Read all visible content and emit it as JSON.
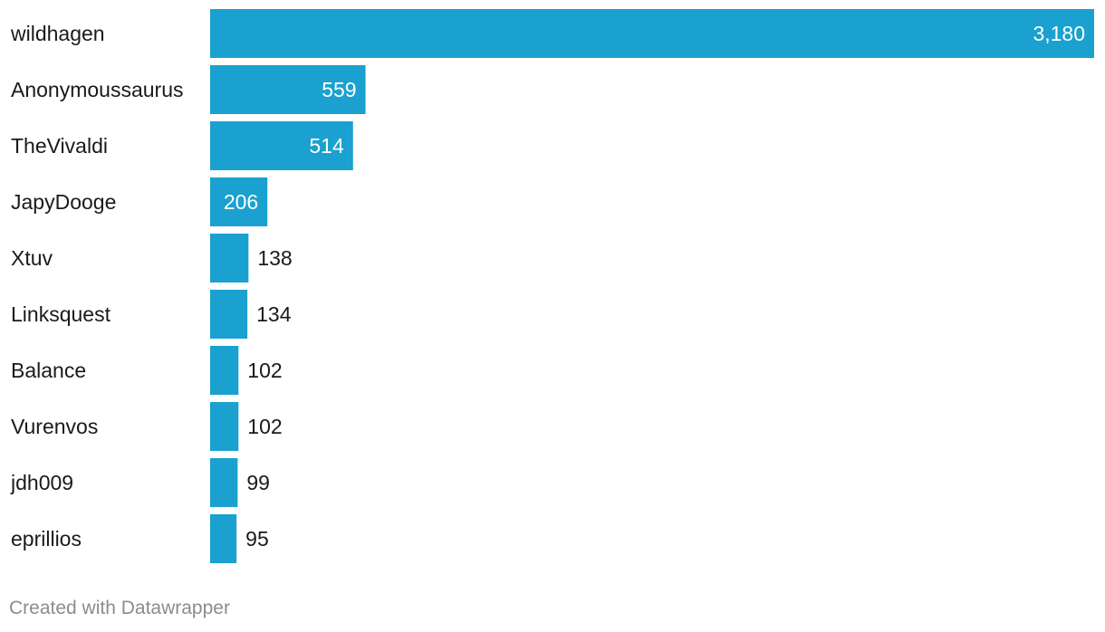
{
  "chart_data": {
    "type": "bar",
    "orientation": "horizontal",
    "categories": [
      "wildhagen",
      "Anonymoussaurus",
      "TheVivaldi",
      "JapyDooge",
      "Xtuv",
      "Linksquest",
      "Balance",
      "Vurenvos",
      "jdh009",
      "eprillios"
    ],
    "values": [
      3180,
      559,
      514,
      206,
      138,
      134,
      102,
      102,
      99,
      95
    ],
    "value_labels": [
      "3,180",
      "559",
      "514",
      "206",
      "138",
      "134",
      "102",
      "102",
      "99",
      "95"
    ],
    "xlim": [
      0,
      3180
    ],
    "grid": false,
    "legend": "none",
    "bar_color": "#1aa1cf",
    "title": "",
    "xlabel": "",
    "ylabel": ""
  },
  "footer": {
    "credit": "Created with Datawrapper"
  }
}
